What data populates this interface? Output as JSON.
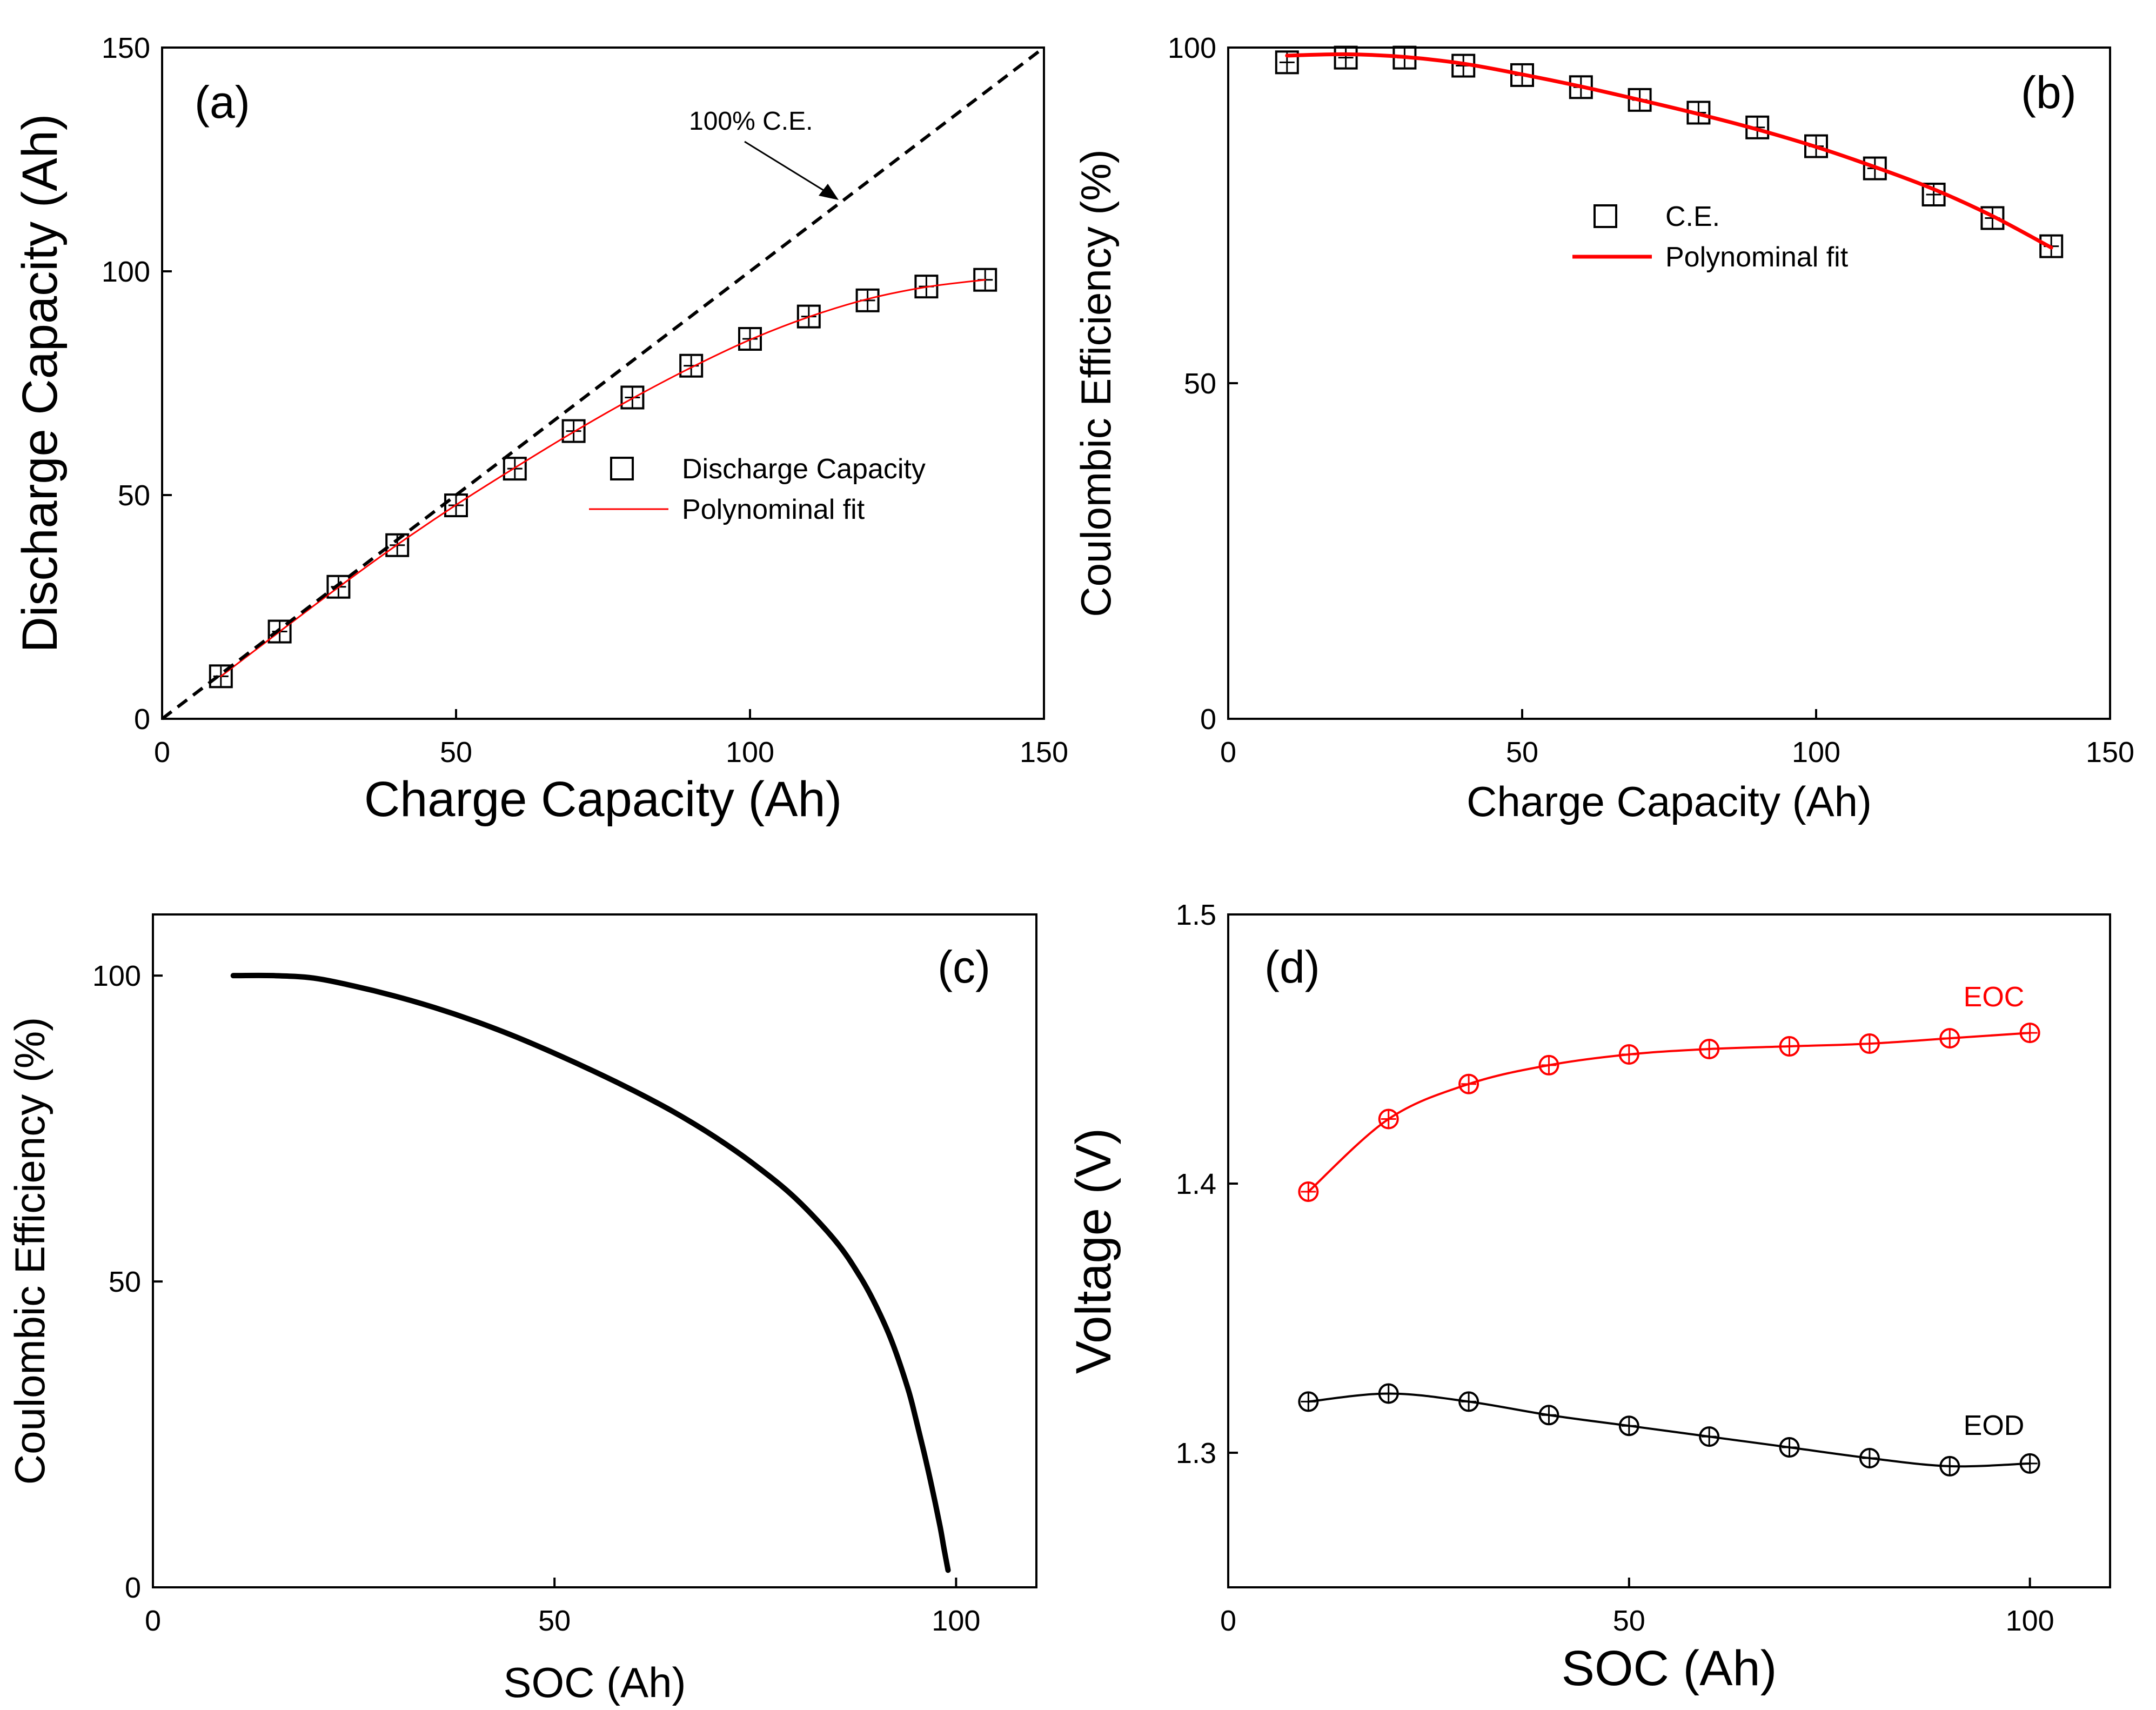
{
  "chart_data": [
    {
      "panel": "(a)",
      "type": "scatter",
      "xlabel": "Charge Capacity (Ah)",
      "ylabel": "Discharge Capacity (Ah)",
      "xlim": [
        0,
        150
      ],
      "ylim": [
        0,
        150
      ],
      "xticks": [
        "0",
        "50",
        "100",
        "150"
      ],
      "yticks": [
        "0",
        "50",
        "100",
        "150"
      ],
      "legend_placement": "center-right",
      "annotations": [
        "100% C.E."
      ],
      "series": [
        {
          "name": "Discharge Capacity",
          "marker": "open-square",
          "color": "#000000",
          "x": [
            10,
            20,
            30,
            40,
            50,
            60,
            70,
            80,
            90,
            100,
            110,
            120,
            130,
            140
          ],
          "y": [
            9.5,
            19.5,
            29.5,
            38.8,
            47.7,
            55.9,
            64.3,
            71.8,
            78.9,
            84.9,
            89.9,
            93.5,
            96.6,
            98.1
          ]
        },
        {
          "name": "Polynominal fit",
          "style": "line",
          "color": "#ff0000",
          "x": [
            10,
            20,
            30,
            40,
            50,
            60,
            70,
            80,
            90,
            100,
            110,
            120,
            130,
            140
          ],
          "y": [
            9.5,
            19.5,
            29.4,
            38.9,
            47.8,
            56.1,
            64.1,
            71.6,
            78.5,
            84.7,
            89.8,
            93.8,
            96.5,
            98.1
          ]
        },
        {
          "name": "100% C.E.",
          "style": "dashed",
          "color": "#000000",
          "x": [
            0,
            150
          ],
          "y": [
            0,
            150
          ]
        }
      ]
    },
    {
      "panel": "(b)",
      "type": "scatter",
      "xlabel": "Charge Capacity (Ah)",
      "ylabel": "Coulombic Efficiency (%)",
      "xlim": [
        0,
        150
      ],
      "ylim": [
        0,
        100
      ],
      "xticks": [
        "0",
        "50",
        "100",
        "150"
      ],
      "yticks": [
        "0",
        "50",
        "100"
      ],
      "legend_placement": "upper-center",
      "series": [
        {
          "name": "C.E.",
          "marker": "open-square",
          "color": "#000000",
          "x": [
            10,
            20,
            30,
            40,
            50,
            60,
            70,
            80,
            90,
            100,
            110,
            120,
            130,
            140
          ],
          "y": [
            97.8,
            98.5,
            98.5,
            97.3,
            95.9,
            94.1,
            92.2,
            90.3,
            88.1,
            85.3,
            82.0,
            78.1,
            74.6,
            70.4
          ]
        },
        {
          "name": "Polynominal fit",
          "style": "line",
          "color": "#ff0000",
          "x": [
            10,
            20,
            30,
            40,
            50,
            60,
            70,
            80,
            90,
            100,
            110,
            120,
            130,
            140
          ],
          "y": [
            98.8,
            99.0,
            98.6,
            97.6,
            96.0,
            94.2,
            92.2,
            90.1,
            87.8,
            85.2,
            82.2,
            78.9,
            74.9,
            70.2
          ]
        }
      ]
    },
    {
      "panel": "(c)",
      "type": "line",
      "xlabel": "SOC (Ah)",
      "ylabel": "Coulombic Efficiency (%)",
      "xlim": [
        0,
        110
      ],
      "ylim": [
        0,
        110
      ],
      "xticks": [
        "0",
        "50",
        "100"
      ],
      "yticks": [
        "0",
        "50",
        "100"
      ],
      "series": [
        {
          "style": "line",
          "color": "#000000",
          "x": [
            10,
            15,
            20,
            25,
            30,
            35,
            40,
            45,
            50,
            55,
            60,
            65,
            70,
            75,
            80,
            85,
            88,
            90,
            92,
            94,
            95,
            96,
            97,
            98,
            98.5,
            99
          ],
          "y": [
            100,
            100,
            99.6,
            98.3,
            96.7,
            94.8,
            92.6,
            90.1,
            87.3,
            84.3,
            81.1,
            77.6,
            73.6,
            69.0,
            63.6,
            56.6,
            50.9,
            46.1,
            40.2,
            32.5,
            27.5,
            22.1,
            16.3,
            10.0,
            6.3,
            2.8
          ]
        }
      ]
    },
    {
      "panel": "(d)",
      "type": "scatter",
      "xlabel": "SOC (Ah)",
      "ylabel": "Voltage (V)",
      "xlim": [
        0,
        110
      ],
      "ylim": [
        1.25,
        1.5
      ],
      "xticks": [
        "0",
        "50",
        "100"
      ],
      "yticks": [
        "1.3",
        "1.4",
        "1.5"
      ],
      "series": [
        {
          "name": "EOC",
          "marker": "open-circle",
          "color": "#ff0000",
          "x": [
            10,
            20,
            30,
            40,
            50,
            60,
            70,
            80,
            90,
            100
          ],
          "y": [
            1.397,
            1.424,
            1.437,
            1.444,
            1.448,
            1.45,
            1.451,
            1.452,
            1.454,
            1.456
          ]
        },
        {
          "name": "EOD",
          "marker": "open-circle",
          "color": "#000000",
          "x": [
            10,
            20,
            30,
            40,
            50,
            60,
            70,
            80,
            90,
            100
          ],
          "y": [
            1.319,
            1.322,
            1.319,
            1.314,
            1.31,
            1.306,
            1.302,
            1.298,
            1.295,
            1.296
          ]
        }
      ]
    }
  ]
}
